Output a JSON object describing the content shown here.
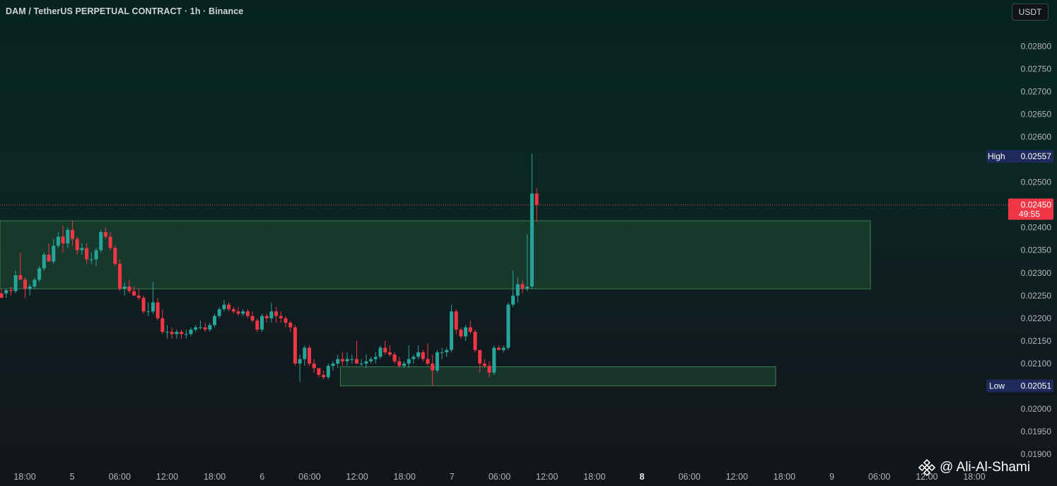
{
  "header": {
    "title": "DAM / TetherUS PERPETUAL CONTRACT · 1h · Binance",
    "currency_label": "USDT"
  },
  "watermark": {
    "icon": "binance-logo-icon",
    "text": "@ Ali-Al-Shami"
  },
  "colors": {
    "up": "#26a69a",
    "down": "#f23645",
    "zone_fill": "#1f4d35",
    "zone_stroke": "#3c7f52",
    "price_tag": "#f23645",
    "high_low_tag": "#1e2a5c"
  },
  "price_tag": {
    "value": "0.02450",
    "countdown": "49:55"
  },
  "high_tag": {
    "label": "High",
    "value": "0.02557"
  },
  "low_tag": {
    "label": "Low",
    "value": "0.02051"
  },
  "chart_data": {
    "type": "candlestick",
    "title": "DAM / TetherUS PERPETUAL CONTRACT · 1h · Binance",
    "ylim": [
      0.0188,
      0.02855
    ],
    "y_ticks": [
      "0.02800",
      "0.02750",
      "0.02700",
      "0.02650",
      "0.02600",
      "0.02550",
      "0.02500",
      "0.02450",
      "0.02400",
      "0.02350",
      "0.02300",
      "0.02250",
      "0.02200",
      "0.02150",
      "0.02100",
      "0.02050",
      "0.02000",
      "0.01950",
      "0.01900"
    ],
    "x_ticks": [
      "18:00",
      "5",
      "06:00",
      "12:00",
      "18:00",
      "6",
      "06:00",
      "12:00",
      "18:00",
      "7",
      "06:00",
      "12:00",
      "18:00",
      "8",
      "06:00",
      "12:00",
      "18:00",
      "9",
      "06:00",
      "12:00",
      "18:00"
    ],
    "bold_x_ticks": [
      "8"
    ],
    "grid": false,
    "last_price": 0.0245,
    "high": 0.02557,
    "low": 0.02051,
    "zones": [
      {
        "from_index": 0,
        "to_index": 183,
        "top": 0.02415,
        "bottom": 0.02265
      },
      {
        "from_index": 72,
        "to_index": 163,
        "top": 0.02093,
        "bottom": 0.02051
      }
    ],
    "candles": [
      [
        0.02255,
        0.02265,
        0.02245,
        0.02245
      ],
      [
        0.02255,
        0.02265,
        0.02245,
        0.02262
      ],
      [
        0.02262,
        0.0227,
        0.0225,
        0.0226
      ],
      [
        0.0226,
        0.02305,
        0.02255,
        0.02295
      ],
      [
        0.02295,
        0.02345,
        0.02285,
        0.02285
      ],
      [
        0.02285,
        0.0229,
        0.02245,
        0.02265
      ],
      [
        0.02265,
        0.02275,
        0.0225,
        0.0227
      ],
      [
        0.0227,
        0.0229,
        0.02265,
        0.02285
      ],
      [
        0.02285,
        0.02315,
        0.0228,
        0.0231
      ],
      [
        0.0231,
        0.02345,
        0.02305,
        0.0234
      ],
      [
        0.0234,
        0.02365,
        0.02325,
        0.02325
      ],
      [
        0.02325,
        0.02375,
        0.0232,
        0.0236
      ],
      [
        0.0236,
        0.0239,
        0.02355,
        0.0238
      ],
      [
        0.0238,
        0.02405,
        0.02345,
        0.02365
      ],
      [
        0.02365,
        0.024,
        0.02355,
        0.02395
      ],
      [
        0.02395,
        0.02415,
        0.0236,
        0.02375
      ],
      [
        0.02375,
        0.0238,
        0.0234,
        0.0235
      ],
      [
        0.0235,
        0.02365,
        0.0234,
        0.02355
      ],
      [
        0.02355,
        0.02365,
        0.0232,
        0.0233
      ],
      [
        0.0233,
        0.02345,
        0.0232,
        0.0233
      ],
      [
        0.0233,
        0.02355,
        0.02315,
        0.0235
      ],
      [
        0.0235,
        0.02395,
        0.02345,
        0.0239
      ],
      [
        0.0239,
        0.024,
        0.02375,
        0.0238
      ],
      [
        0.0238,
        0.0239,
        0.0235,
        0.02355
      ],
      [
        0.02355,
        0.0236,
        0.02315,
        0.0232
      ],
      [
        0.0232,
        0.0233,
        0.0226,
        0.02265
      ],
      [
        0.02265,
        0.0228,
        0.0225,
        0.0227
      ],
      [
        0.0227,
        0.02285,
        0.02255,
        0.0226
      ],
      [
        0.0226,
        0.0227,
        0.0225,
        0.0225
      ],
      [
        0.0225,
        0.02265,
        0.0224,
        0.02245
      ],
      [
        0.02245,
        0.0225,
        0.0221,
        0.02215
      ],
      [
        0.02215,
        0.02235,
        0.02205,
        0.02215
      ],
      [
        0.02215,
        0.0228,
        0.0221,
        0.02235
      ],
      [
        0.02235,
        0.02245,
        0.02195,
        0.022
      ],
      [
        0.022,
        0.0222,
        0.02165,
        0.0217
      ],
      [
        0.0217,
        0.02185,
        0.02155,
        0.0217
      ],
      [
        0.0217,
        0.0218,
        0.02155,
        0.02165
      ],
      [
        0.02165,
        0.02175,
        0.02155,
        0.0217
      ],
      [
        0.0217,
        0.02175,
        0.02155,
        0.02165
      ],
      [
        0.02165,
        0.02175,
        0.02155,
        0.02165
      ],
      [
        0.02165,
        0.0218,
        0.0216,
        0.02175
      ],
      [
        0.02175,
        0.02185,
        0.0217,
        0.0218
      ],
      [
        0.0218,
        0.02195,
        0.02175,
        0.0218
      ],
      [
        0.0218,
        0.0219,
        0.0217,
        0.02175
      ],
      [
        0.02175,
        0.0219,
        0.0217,
        0.02185
      ],
      [
        0.02185,
        0.0221,
        0.0218,
        0.02205
      ],
      [
        0.02205,
        0.02225,
        0.022,
        0.0222
      ],
      [
        0.0222,
        0.0224,
        0.02215,
        0.0223
      ],
      [
        0.0223,
        0.02235,
        0.02215,
        0.0222
      ],
      [
        0.0222,
        0.02225,
        0.0221,
        0.02215
      ],
      [
        0.02215,
        0.02225,
        0.02205,
        0.0221
      ],
      [
        0.0221,
        0.0222,
        0.02205,
        0.02215
      ],
      [
        0.02215,
        0.0222,
        0.022,
        0.02205
      ],
      [
        0.02205,
        0.02215,
        0.0219,
        0.02195
      ],
      [
        0.02195,
        0.022,
        0.0217,
        0.02175
      ],
      [
        0.02175,
        0.0221,
        0.0217,
        0.02205
      ],
      [
        0.02205,
        0.0221,
        0.0219,
        0.022
      ],
      [
        0.022,
        0.02235,
        0.0219,
        0.02215
      ],
      [
        0.02215,
        0.02225,
        0.0219,
        0.02205
      ],
      [
        0.02205,
        0.02215,
        0.0219,
        0.022
      ],
      [
        0.022,
        0.02205,
        0.0218,
        0.0219
      ],
      [
        0.0219,
        0.02195,
        0.0217,
        0.0218
      ],
      [
        0.0218,
        0.02185,
        0.02095,
        0.021
      ],
      [
        0.021,
        0.0212,
        0.0206,
        0.0211
      ],
      [
        0.0211,
        0.0214,
        0.02095,
        0.02135
      ],
      [
        0.02135,
        0.0214,
        0.02095,
        0.021
      ],
      [
        0.021,
        0.0211,
        0.0208,
        0.0209
      ],
      [
        0.0209,
        0.0209,
        0.0207,
        0.02075
      ],
      [
        0.02075,
        0.02085,
        0.02065,
        0.0207
      ],
      [
        0.0207,
        0.021,
        0.02065,
        0.02095
      ],
      [
        0.02095,
        0.02105,
        0.02085,
        0.021
      ],
      [
        0.021,
        0.0212,
        0.0209,
        0.0211
      ],
      [
        0.0211,
        0.02125,
        0.02095,
        0.02105
      ],
      [
        0.02105,
        0.02125,
        0.02095,
        0.0211
      ],
      [
        0.0211,
        0.0212,
        0.021,
        0.0211
      ],
      [
        0.0211,
        0.0215,
        0.021,
        0.021
      ],
      [
        0.021,
        0.0211,
        0.02095,
        0.021
      ],
      [
        0.021,
        0.0212,
        0.0209,
        0.02105
      ],
      [
        0.02105,
        0.02115,
        0.021,
        0.0211
      ],
      [
        0.0211,
        0.02125,
        0.021,
        0.02115
      ],
      [
        0.02115,
        0.0214,
        0.0211,
        0.02135
      ],
      [
        0.02135,
        0.0215,
        0.0212,
        0.02125
      ],
      [
        0.02125,
        0.0214,
        0.02115,
        0.0212
      ],
      [
        0.0212,
        0.02125,
        0.021,
        0.02105
      ],
      [
        0.02105,
        0.02115,
        0.0209,
        0.02095
      ],
      [
        0.02095,
        0.02105,
        0.0209,
        0.021
      ],
      [
        0.021,
        0.0214,
        0.0209,
        0.0211
      ],
      [
        0.0211,
        0.0212,
        0.021,
        0.02115
      ],
      [
        0.02115,
        0.0214,
        0.0211,
        0.02125
      ],
      [
        0.02125,
        0.0213,
        0.02105,
        0.0211
      ],
      [
        0.0211,
        0.02145,
        0.02095,
        0.021
      ],
      [
        0.021,
        0.0212,
        0.0205,
        0.02085
      ],
      [
        0.02085,
        0.0213,
        0.0208,
        0.02125
      ],
      [
        0.02125,
        0.02135,
        0.0211,
        0.02125
      ],
      [
        0.02125,
        0.02135,
        0.02115,
        0.0213
      ],
      [
        0.0213,
        0.0223,
        0.02125,
        0.02215
      ],
      [
        0.02215,
        0.0222,
        0.02165,
        0.02175
      ],
      [
        0.02175,
        0.0218,
        0.02155,
        0.0216
      ],
      [
        0.0216,
        0.02185,
        0.0215,
        0.0218
      ],
      [
        0.0218,
        0.02195,
        0.02165,
        0.0217
      ],
      [
        0.0217,
        0.02175,
        0.02125,
        0.0213
      ],
      [
        0.0213,
        0.0213,
        0.0208,
        0.021
      ],
      [
        0.021,
        0.0211,
        0.0209,
        0.02095
      ],
      [
        0.02095,
        0.02105,
        0.0207,
        0.0208
      ],
      [
        0.0208,
        0.0214,
        0.02075,
        0.02135
      ],
      [
        0.02135,
        0.0214,
        0.0213,
        0.0213
      ],
      [
        0.0213,
        0.0214,
        0.02125,
        0.02135
      ],
      [
        0.02135,
        0.02235,
        0.0213,
        0.0223
      ],
      [
        0.0223,
        0.02305,
        0.02225,
        0.0225
      ],
      [
        0.0225,
        0.0229,
        0.02235,
        0.02275
      ],
      [
        0.02275,
        0.02285,
        0.02255,
        0.02265
      ],
      [
        0.02265,
        0.02385,
        0.0226,
        0.0227
      ],
      [
        0.0227,
        0.02563,
        0.02265,
        0.02475
      ],
      [
        0.02475,
        0.02487,
        0.02413,
        0.0245
      ]
    ]
  }
}
